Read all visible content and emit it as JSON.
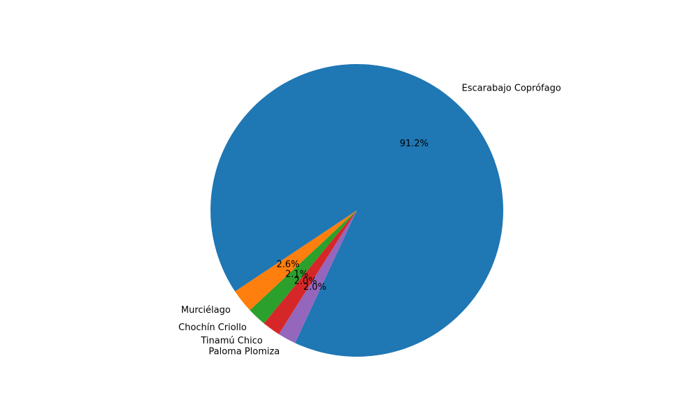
{
  "chart_data": {
    "type": "pie",
    "categories": [
      "Escarabajo Coprófago",
      "Murciélago",
      "Chochín Criollo",
      "Tinamú Chico",
      "Paloma Plomiza"
    ],
    "values": [
      91.2,
      2.6,
      2.1,
      2.0,
      2.0
    ],
    "percent_labels": [
      "91.2%",
      "2.6%",
      "2.1%",
      "2.0%",
      "2.0%"
    ],
    "colors": [
      "#1f77b4",
      "#ff7f0e",
      "#2ca02c",
      "#d62728",
      "#9467bd"
    ],
    "legend": false
  }
}
